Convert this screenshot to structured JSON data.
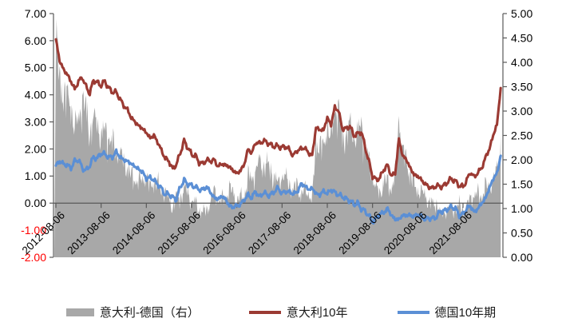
{
  "chart_data": {
    "type": "combo-area-line",
    "x_start": "2012-08",
    "x_step_months": 1,
    "x_tick_labels": [
      "2012-08-06",
      "2013-08-06",
      "2014-08-06",
      "2015-08-06",
      "2016-08-06",
      "2017-08-06",
      "2018-08-06",
      "2019-08-06",
      "2020-08-06",
      "2021-08-06"
    ],
    "left_axis": {
      "min": -2,
      "max": 7,
      "step": 1,
      "tick_labels": [
        "7.00",
        "6.00",
        "5.00",
        "4.00",
        "3.00",
        "2.00",
        "1.00",
        "0.00",
        "-1.00",
        "-2.00"
      ],
      "tick_color": "#000000",
      "negative_tick_color": "#FF0000"
    },
    "right_axis": {
      "min": 0,
      "max": 5,
      "step": 0.5,
      "tick_labels": [
        "5.00",
        "4.50",
        "4.00",
        "3.50",
        "3.00",
        "2.50",
        "2.00",
        "1.50",
        "1.00",
        "0.50",
        "0.00"
      ],
      "tick_color": "#000000"
    },
    "grid": false,
    "axis_line_color": "#595959",
    "series": [
      {
        "name": "意大利-德国（右）",
        "type": "area",
        "axis": "right",
        "color": "#A8A8A8",
        "values": [
          4.65,
          3.7,
          3.5,
          3.35,
          3.2,
          2.65,
          2.9,
          3.35,
          3.1,
          2.65,
          2.85,
          2.8,
          2.5,
          2.7,
          2.55,
          2.4,
          2.2,
          2.15,
          2.0,
          1.9,
          1.7,
          1.65,
          1.6,
          1.6,
          1.7,
          1.45,
          1.65,
          1.55,
          1.4,
          1.35,
          1.2,
          1.05,
          1.3,
          1.25,
          1.45,
          1.35,
          1.15,
          1.15,
          1.0,
          0.95,
          1.0,
          1.15,
          1.4,
          1.2,
          1.2,
          1.25,
          1.45,
          1.35,
          1.2,
          1.25,
          1.3,
          1.7,
          1.65,
          1.8,
          2.0,
          1.9,
          1.95,
          1.85,
          1.65,
          1.55,
          1.7,
          1.65,
          1.55,
          1.4,
          1.55,
          1.3,
          1.4,
          1.35,
          1.2,
          2.45,
          2.4,
          2.25,
          2.8,
          2.4,
          3.15,
          3.1,
          2.5,
          2.6,
          2.75,
          2.55,
          2.55,
          2.85,
          2.4,
          2.0,
          1.7,
          1.4,
          1.35,
          1.6,
          1.6,
          1.45,
          1.7,
          2.95,
          2.2,
          2.05,
          1.75,
          1.55,
          1.4,
          1.35,
          1.3,
          1.15,
          1.12,
          1.15,
          0.9,
          0.95,
          1.0,
          1.05,
          1.0,
          1.1,
          1.0,
          1.05,
          1.25,
          1.3,
          1.33,
          1.3,
          1.5,
          1.45,
          1.6,
          1.8,
          2.5
        ]
      },
      {
        "name": "意大利10年",
        "type": "line",
        "axis": "left",
        "color": "#9B3A33",
        "values": [
          6.05,
          5.25,
          4.95,
          4.75,
          4.5,
          4.2,
          4.5,
          4.65,
          4.3,
          4.05,
          4.55,
          4.45,
          4.35,
          4.5,
          4.25,
          4.1,
          4.1,
          3.85,
          3.6,
          3.45,
          3.15,
          3.0,
          2.85,
          2.75,
          2.6,
          2.4,
          2.5,
          2.25,
          1.95,
          1.65,
          1.55,
          1.25,
          1.45,
          1.85,
          2.3,
          2.05,
          1.8,
          1.75,
          1.5,
          1.45,
          1.6,
          1.55,
          1.6,
          1.35,
          1.45,
          1.4,
          1.35,
          1.2,
          1.1,
          1.2,
          1.45,
          2.0,
          1.85,
          2.25,
          2.2,
          2.3,
          2.25,
          2.15,
          2.1,
          2.1,
          2.05,
          2.1,
          1.95,
          1.75,
          1.95,
          2.0,
          2.05,
          1.85,
          1.75,
          2.8,
          2.7,
          2.7,
          3.15,
          2.9,
          3.55,
          3.4,
          2.75,
          2.75,
          2.85,
          2.5,
          2.55,
          2.65,
          2.1,
          1.55,
          1.0,
          0.85,
          0.95,
          1.25,
          1.4,
          1.0,
          1.1,
          2.35,
          1.75,
          1.6,
          1.3,
          1.05,
          1.0,
          0.85,
          0.7,
          0.6,
          0.55,
          0.65,
          0.6,
          0.65,
          0.8,
          0.9,
          0.8,
          0.65,
          0.6,
          0.85,
          1.15,
          0.95,
          1.15,
          1.3,
          1.7,
          2.0,
          2.5,
          2.9,
          4.25
        ]
      },
      {
        "name": "德国10年期",
        "type": "line",
        "axis": "left",
        "color": "#5B8FD5",
        "values": [
          1.4,
          1.55,
          1.45,
          1.4,
          1.3,
          1.55,
          1.6,
          1.3,
          1.2,
          1.4,
          1.7,
          1.65,
          1.85,
          1.8,
          1.7,
          1.7,
          1.9,
          1.7,
          1.6,
          1.55,
          1.45,
          1.35,
          1.25,
          1.15,
          0.9,
          0.95,
          0.85,
          0.7,
          0.55,
          0.3,
          0.35,
          0.2,
          0.15,
          0.6,
          0.85,
          0.7,
          0.65,
          0.6,
          0.5,
          0.5,
          0.6,
          0.4,
          0.2,
          0.15,
          0.25,
          0.15,
          -0.1,
          -0.15,
          -0.1,
          -0.05,
          0.15,
          0.3,
          0.2,
          0.45,
          0.2,
          0.4,
          0.3,
          0.3,
          0.45,
          0.55,
          0.35,
          0.45,
          0.4,
          0.35,
          0.4,
          0.7,
          0.65,
          0.5,
          0.55,
          0.35,
          0.3,
          0.45,
          0.35,
          0.5,
          0.4,
          0.3,
          0.25,
          0.15,
          0.1,
          -0.05,
          0.0,
          -0.2,
          -0.3,
          -0.45,
          -0.7,
          -0.55,
          -0.4,
          -0.35,
          -0.2,
          -0.45,
          -0.6,
          -0.6,
          -0.45,
          -0.45,
          -0.45,
          -0.5,
          -0.4,
          -0.5,
          -0.6,
          -0.55,
          -0.57,
          -0.5,
          -0.3,
          -0.3,
          -0.2,
          -0.15,
          -0.2,
          -0.45,
          -0.4,
          -0.2,
          -0.1,
          -0.35,
          -0.18,
          0.0,
          0.2,
          0.55,
          0.9,
          1.1,
          1.75
        ]
      }
    ]
  },
  "legend": {
    "items": [
      {
        "label": "意大利-德国（右）",
        "swatch": "area"
      },
      {
        "label": "意大利10年",
        "swatch": "line"
      },
      {
        "label": "德国10年期",
        "swatch": "line"
      }
    ]
  }
}
